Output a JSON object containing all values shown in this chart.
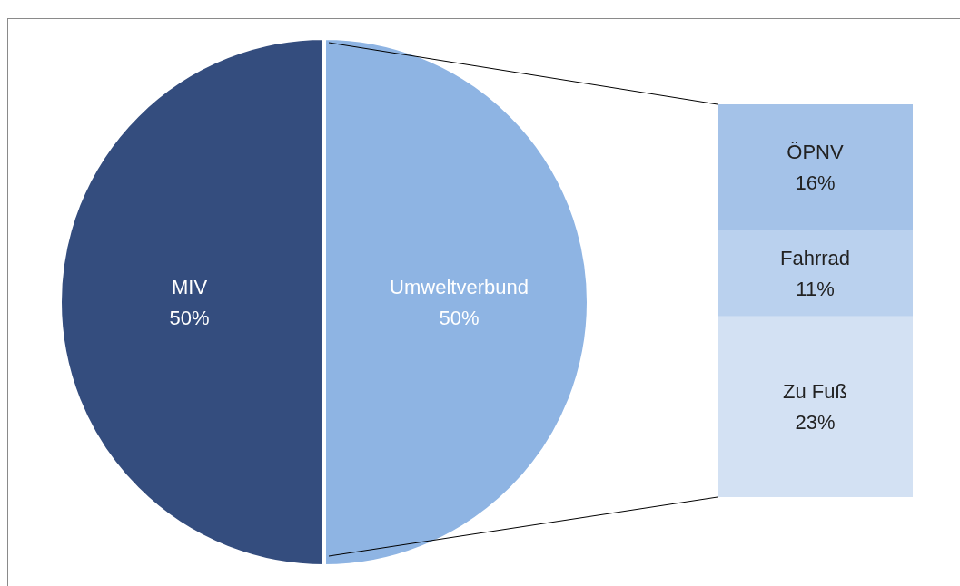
{
  "chart_data": [
    {
      "type": "pie",
      "categories": [
        "MIV",
        "Umweltverbund"
      ],
      "values": [
        50,
        50
      ],
      "colors": [
        "#344d7e",
        "#8eb4e3"
      ],
      "value_labels": [
        "50%",
        "50%"
      ]
    },
    {
      "type": "bar",
      "stacked": true,
      "categories": [
        null
      ],
      "series": [
        {
          "name": "Zu Fuß",
          "color": "#d3e1f3",
          "values": [
            23
          ],
          "value_labels": [
            "23%"
          ]
        },
        {
          "name": "Fahrrad",
          "color": "#bad1ee",
          "values": [
            11
          ],
          "value_labels": [
            "11%"
          ]
        },
        {
          "name": "ÖPNV",
          "color": "#a4c2e8",
          "values": [
            16
          ],
          "value_labels": [
            "16%"
          ]
        }
      ]
    }
  ]
}
